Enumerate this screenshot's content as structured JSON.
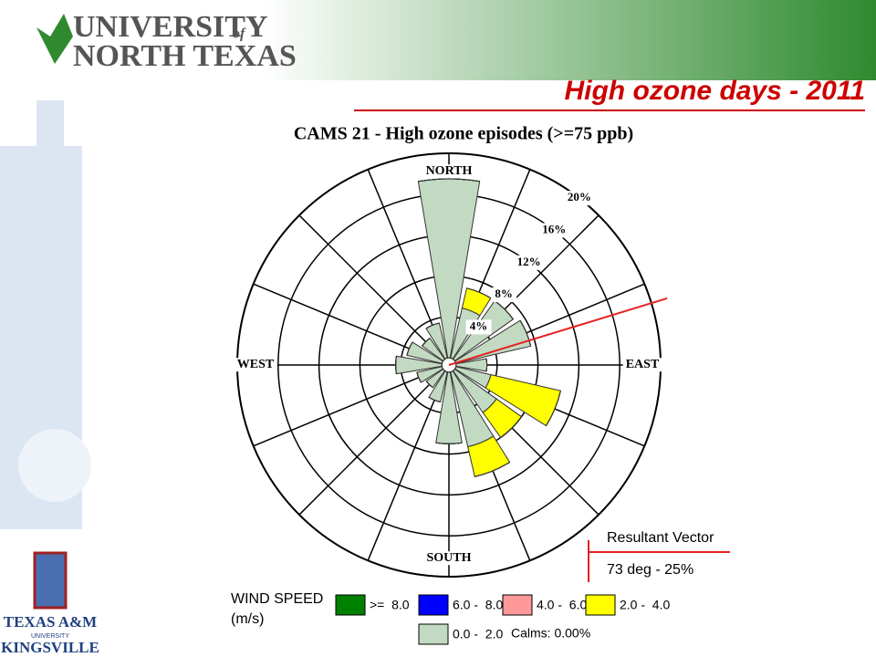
{
  "slide": {
    "title": "High ozone days - 2011",
    "logo_top": [
      "UNIVERSITY",
      "of",
      "NORTH TEXAS"
    ],
    "logo_bottom": [
      "TEXAS A&M",
      "UNIVERSITY",
      "KINGSVILLE"
    ]
  },
  "chart_data": {
    "type": "windrose",
    "title": "CAMS 21 - High ozone episodes (>=75 ppb)",
    "categories": [
      "NORTH",
      null,
      null,
      null,
      "EAST",
      null,
      null,
      null,
      "SOUTH",
      null,
      null,
      null,
      "WEST",
      null,
      null,
      null
    ],
    "rlim": [
      0,
      20
    ],
    "rticks": [
      {
        "value": 4,
        "label": "4%"
      },
      {
        "value": 8,
        "label": "8%"
      },
      {
        "value": 12,
        "label": "12%"
      },
      {
        "value": 16,
        "label": "16%"
      },
      {
        "value": 20,
        "label": "20%"
      }
    ],
    "legend_title": [
      "WIND SPEED",
      "(m/s)"
    ],
    "calms": "Calms: 0.00%",
    "series": [
      {
        "name": ">=  8.0",
        "color": "#008000",
        "values": [
          0,
          0,
          0,
          0,
          0,
          0,
          0,
          0,
          0,
          0,
          0,
          0,
          0,
          0,
          0,
          0
        ]
      },
      {
        "name": "6.0 -  8.0",
        "color": "#0000ff",
        "values": [
          0,
          0,
          0,
          0,
          0,
          0,
          0,
          0,
          0,
          0,
          0,
          0,
          0,
          0,
          0,
          0
        ]
      },
      {
        "name": "4.0 -  6.0",
        "color": "#ff9999",
        "values": [
          0,
          0,
          0,
          0,
          0,
          0,
          0,
          0,
          0,
          0,
          0,
          0,
          0,
          0,
          0,
          0
        ]
      },
      {
        "name": "2.0 -  4.0",
        "color": "#ffff00",
        "values": [
          0,
          2,
          0,
          0,
          0,
          7,
          3,
          3,
          0,
          0,
          0,
          0,
          0,
          0,
          0,
          0
        ]
      },
      {
        "name": "0.0 -  2.0",
        "color": "#c2d9c2",
        "values": [
          17.5,
          5,
          7,
          7.5,
          3,
          3.5,
          5,
          7.5,
          7,
          3,
          2,
          2.5,
          4.5,
          3.5,
          2.5,
          3.5
        ]
      }
    ],
    "resultant": {
      "title": "Resultant Vector",
      "label": "73 deg - 25%",
      "direction": 73,
      "color": "#e52222"
    }
  }
}
